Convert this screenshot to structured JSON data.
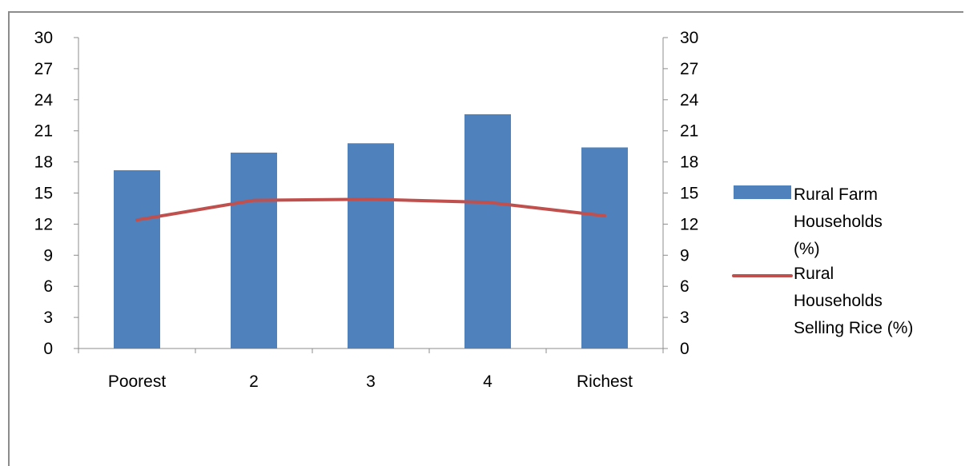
{
  "chart_data": {
    "type": "bar",
    "categories": [
      "Poorest",
      "2",
      "3",
      "4",
      "Richest"
    ],
    "series": [
      {
        "name": "Rural Farm Households (%)",
        "kind": "bar",
        "axis": "left",
        "color": "#4f81bd",
        "values": [
          17.2,
          18.9,
          19.8,
          22.6,
          19.4
        ]
      },
      {
        "name": "Rural Households Selling Rice (%)",
        "kind": "line",
        "axis": "right",
        "color": "#c0504d",
        "values": [
          12.4,
          14.3,
          14.4,
          14.1,
          12.8
        ]
      }
    ],
    "ylim": [
      0,
      30
    ],
    "y_ticks": [
      "0",
      "3",
      "6",
      "9",
      "12",
      "15",
      "18",
      "21",
      "24",
      "27",
      "30"
    ],
    "y2lim": [
      0,
      30
    ],
    "y2_ticks": [
      "0",
      "3",
      "6",
      "9",
      "12",
      "15",
      "18",
      "21",
      "24",
      "27",
      "30"
    ],
    "legend": {
      "position": "right",
      "entries": [
        {
          "lines": [
            "Rural Farm",
            "Households",
            "(%)"
          ],
          "color": "#4f81bd",
          "marker": "bar"
        },
        {
          "lines": [
            "Rural",
            "Households",
            "Selling Rice (%)"
          ],
          "color": "#c0504d",
          "marker": "line"
        }
      ]
    },
    "grid": false,
    "title": "",
    "xlabel": "",
    "ylabel": ""
  }
}
